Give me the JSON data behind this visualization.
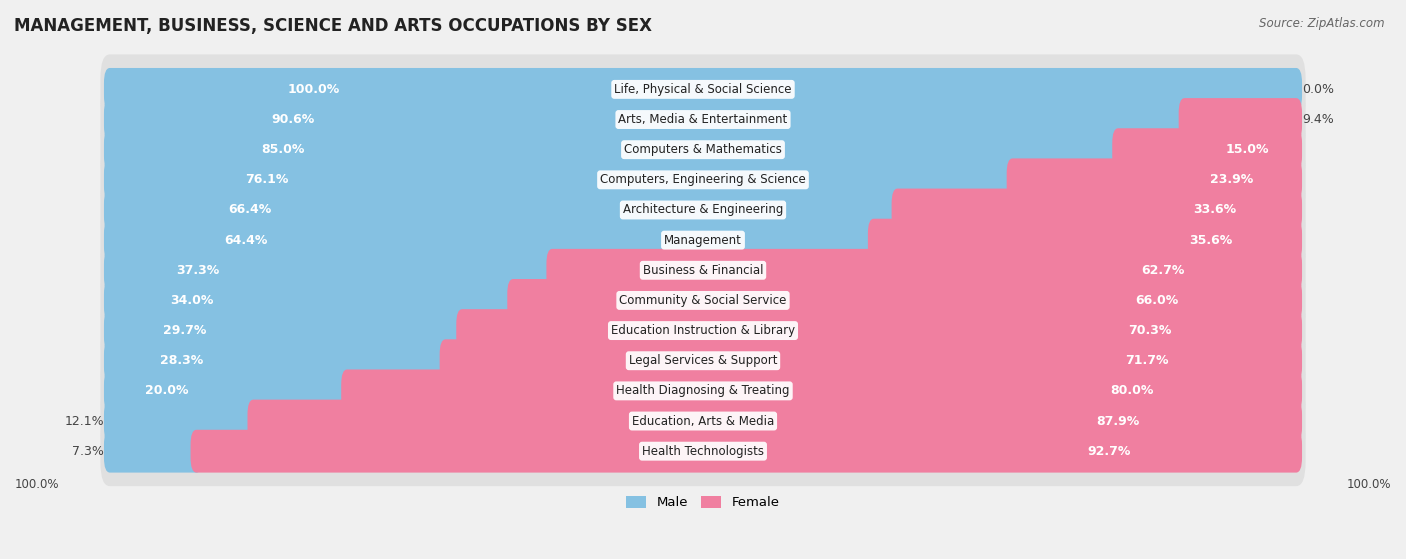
{
  "title": "MANAGEMENT, BUSINESS, SCIENCE AND ARTS OCCUPATIONS BY SEX",
  "source": "Source: ZipAtlas.com",
  "categories": [
    "Life, Physical & Social Science",
    "Arts, Media & Entertainment",
    "Computers & Mathematics",
    "Computers, Engineering & Science",
    "Architecture & Engineering",
    "Management",
    "Business & Financial",
    "Community & Social Service",
    "Education Instruction & Library",
    "Legal Services & Support",
    "Health Diagnosing & Treating",
    "Education, Arts & Media",
    "Health Technologists"
  ],
  "male": [
    100.0,
    90.6,
    85.0,
    76.1,
    66.4,
    64.4,
    37.3,
    34.0,
    29.7,
    28.3,
    20.0,
    12.1,
    7.3
  ],
  "female": [
    0.0,
    9.4,
    15.0,
    23.9,
    33.6,
    35.6,
    62.7,
    66.0,
    70.3,
    71.7,
    80.0,
    87.9,
    92.7
  ],
  "male_color": "#85c1e2",
  "female_color": "#f07fa0",
  "bg_color": "#f0f0f0",
  "row_bg_color": "#e8e8e8",
  "bar_inner_color": "#ffffff",
  "title_fontsize": 12,
  "label_fontsize": 9,
  "cat_fontsize": 8.5,
  "legend_male": "Male",
  "legend_female": "Female",
  "male_label_threshold": 15,
  "female_label_threshold": 15
}
